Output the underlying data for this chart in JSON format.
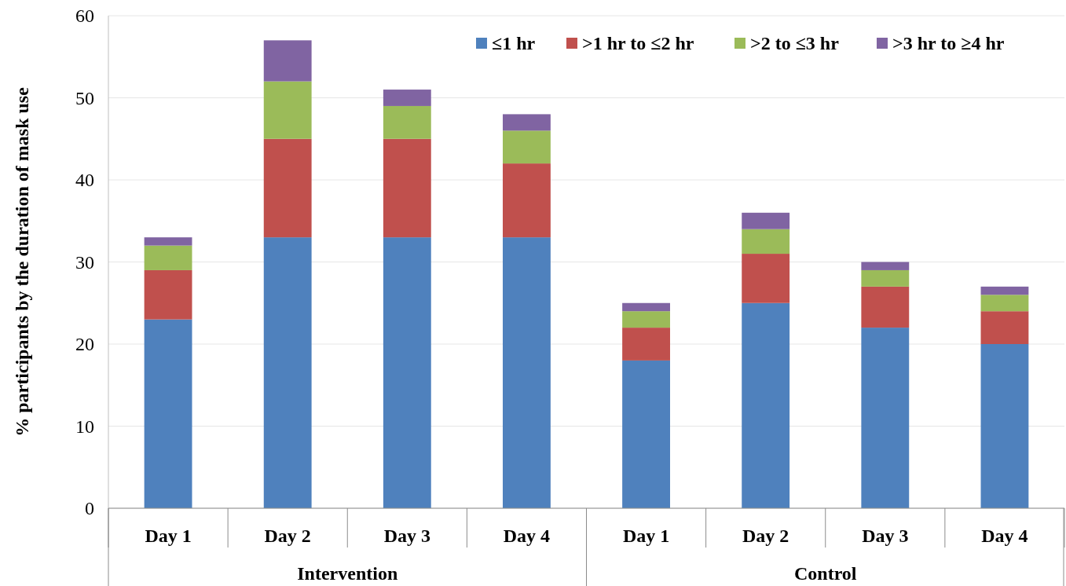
{
  "chart_data": {
    "type": "bar",
    "stacked": true,
    "ylabel": "% participants by the duration of mask use",
    "categories": [
      "Day 1",
      "Day 2",
      "Day 3",
      "Day 4",
      "Day 1",
      "Day 2",
      "Day 3",
      "Day 4"
    ],
    "series": [
      {
        "name": "≤1 hr",
        "color": "#4f81bd",
        "values": [
          23,
          33,
          33,
          33,
          18,
          25,
          22,
          20
        ]
      },
      {
        "name": ">1 hr to ≤2 hr",
        "color": "#c0504d",
        "values": [
          6,
          12,
          12,
          9,
          4,
          6,
          5,
          4
        ]
      },
      {
        "name": ">2 to ≤3 hr",
        "color": "#9bbb59",
        "values": [
          3,
          7,
          4,
          4,
          2,
          3,
          2,
          2
        ]
      },
      {
        "name": ">3 hr to ≥4 hr",
        "color": "#8064a2",
        "values": [
          1,
          5,
          2,
          2,
          1,
          2,
          1,
          1
        ]
      }
    ],
    "ylim": [
      0,
      60
    ],
    "yticks": [
      0,
      10,
      20,
      30,
      40,
      50,
      60
    ],
    "grid": "y",
    "legend": "top right",
    "annotations": [
      "Intervention",
      "Control"
    ]
  }
}
